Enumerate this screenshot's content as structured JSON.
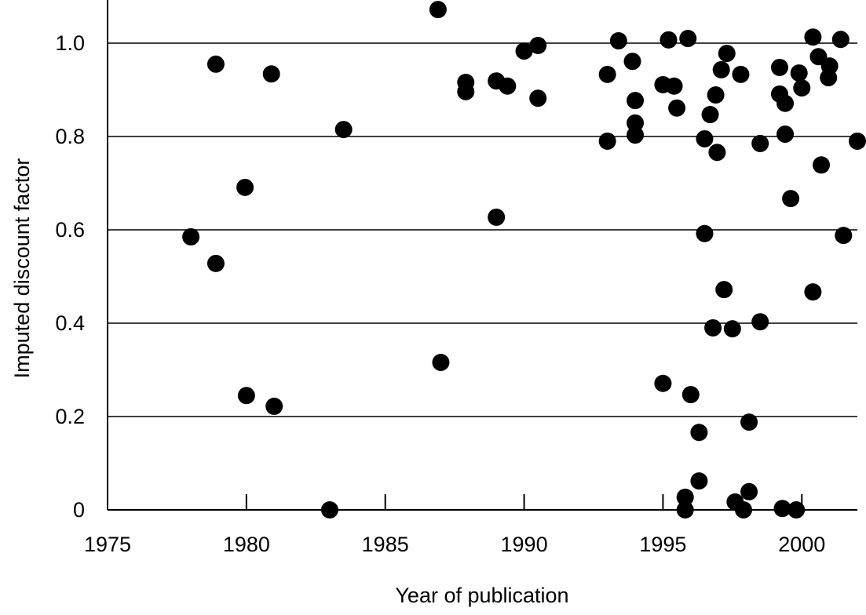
{
  "chart_data": {
    "type": "scatter",
    "x_label": "Year of publication",
    "y_label": "Imputed discount factor",
    "color": "#000000",
    "grid": true,
    "xlim": [
      1975,
      2002
    ],
    "ylim": [
      0,
      1.09
    ],
    "xticks": [
      1975,
      1980,
      1985,
      1990,
      1995,
      2000
    ],
    "yticks": [
      0,
      0.2,
      0.4,
      0.6,
      0.8,
      {
        "value": 1,
        "label": "1.0"
      }
    ],
    "x": [
      1978.0,
      1978.9,
      1978.9,
      1979.95,
      1980.0,
      1980.9,
      1981.0,
      1983.0,
      1983.5,
      1986.9,
      1987.0,
      1987.9,
      1987.9,
      1989.0,
      1989.0,
      1989.4,
      1990.0,
      1990.5,
      1990.5,
      1993.0,
      1993.0,
      1993.4,
      1993.9,
      1994.0,
      1994.0,
      1994.0,
      1995.0,
      1995.2,
      1995.4,
      1995.5,
      1995.0,
      1995.9,
      1995.8,
      1995.8,
      1996.0,
      1996.3,
      1996.3,
      1996.5,
      1996.5,
      1996.7,
      1996.8,
      1996.9,
      1996.95,
      1997.1,
      1997.2,
      1997.3,
      1997.5,
      1997.6,
      1997.8,
      1997.9,
      1998.1,
      1998.1,
      1998.5,
      1998.5,
      1999.2,
      1999.2,
      1999.3,
      1999.4,
      1999.4,
      1999.6,
      1999.8,
      1999.9,
      2000.0,
      2000.4,
      2000.4,
      2000.6,
      2000.7,
      2001.0,
      2000.96,
      2001.4,
      2001.5,
      2002.0
    ],
    "values": [
      0.585,
      0.955,
      0.528,
      0.691,
      0.245,
      0.934,
      0.222,
      0,
      0.815,
      1.072,
      0.316,
      0.916,
      0.896,
      0.919,
      0.627,
      0.908,
      0.983,
      0.995,
      0.882,
      0.933,
      0.79,
      1.005,
      0.961,
      0.877,
      0.829,
      0.803,
      0.911,
      1.007,
      0.908,
      0.861,
      0.271,
      1.01,
      0.027,
      0,
      0.247,
      0.062,
      0.166,
      0.795,
      0.592,
      0.847,
      0.39,
      0.889,
      0.766,
      0.943,
      0.472,
      0.978,
      0.388,
      0.017,
      0.933,
      0,
      0.039,
      0.188,
      0.785,
      0.403,
      0.948,
      0.891,
      0.003,
      0.871,
      0.805,
      0.667,
      0,
      0.936,
      0.904,
      1.013,
      0.467,
      0.971,
      0.739,
      0.951,
      0.926,
      1.008,
      0.588,
      0.79
    ]
  }
}
